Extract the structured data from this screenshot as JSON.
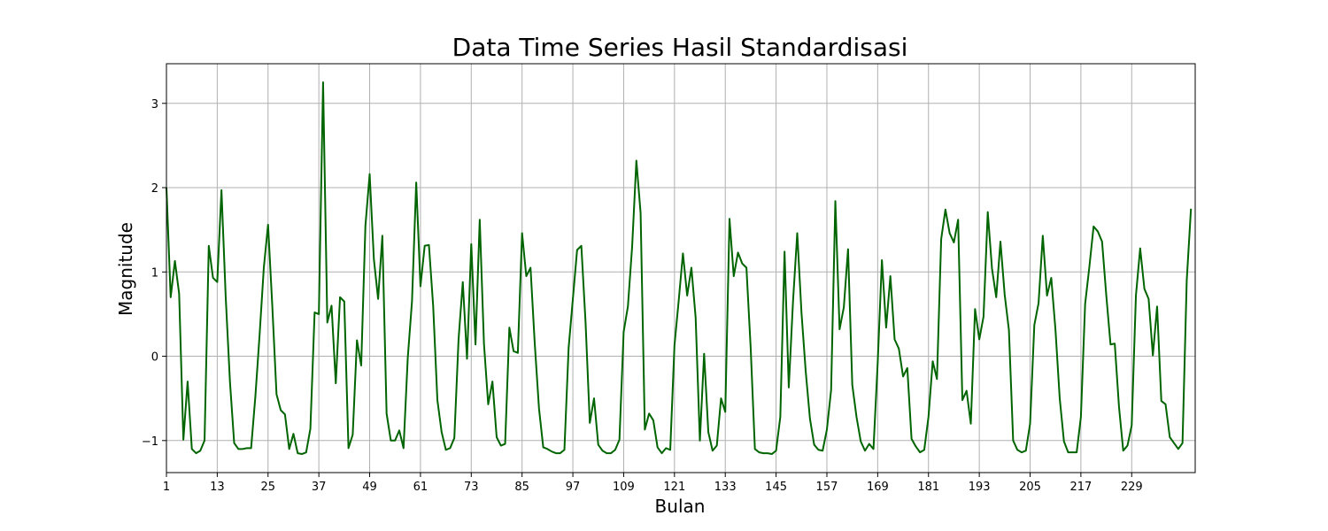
{
  "chart_data": {
    "type": "line",
    "title": "Data Time Series Hasil Standardisasi",
    "xlabel": "Bulan",
    "ylabel": "Magnitude",
    "xlim": [
      1,
      244
    ],
    "ylim": [
      -1.38,
      3.47
    ],
    "x_ticks": [
      1,
      13,
      25,
      37,
      49,
      61,
      73,
      85,
      97,
      109,
      121,
      133,
      145,
      157,
      169,
      181,
      193,
      205,
      217,
      229
    ],
    "y_ticks": [
      -1,
      0,
      1,
      2,
      3
    ],
    "y_tick_labels": [
      "−1",
      "0",
      "1",
      "2",
      "3"
    ],
    "grid": true,
    "colors": {
      "line": "#006400"
    },
    "series": [
      {
        "values": [
          2.0,
          0.7,
          1.13,
          0.74,
          -0.99,
          -0.3,
          -1.1,
          -1.15,
          -1.12,
          -1.0,
          1.31,
          0.93,
          0.88,
          1.97,
          0.7,
          -0.3,
          -1.03,
          -1.1,
          -1.1,
          -1.09,
          -1.09,
          -0.48,
          0.25,
          1.05,
          1.56,
          0.6,
          -0.45,
          -0.64,
          -0.69,
          -1.1,
          -0.92,
          -1.15,
          -1.16,
          -1.14,
          -0.86,
          0.52,
          0.5,
          3.25,
          0.4,
          0.6,
          -0.32,
          0.7,
          0.65,
          -1.09,
          -0.93,
          0.19,
          -0.11,
          1.55,
          2.16,
          1.15,
          0.68,
          1.43,
          -0.68,
          -1.0,
          -1.0,
          -0.88,
          -1.09,
          -0.02,
          0.65,
          2.06,
          0.83,
          1.31,
          1.32,
          0.6,
          -0.52,
          -0.9,
          -1.11,
          -1.09,
          -0.97,
          0.2,
          0.88,
          -0.03,
          1.33,
          0.14,
          1.62,
          0.15,
          -0.57,
          -0.3,
          -0.96,
          -1.06,
          -1.04,
          0.34,
          0.06,
          0.04,
          1.46,
          0.95,
          1.05,
          0.15,
          -0.62,
          -1.08,
          -1.1,
          -1.13,
          -1.15,
          -1.15,
          -1.11,
          0.1,
          0.68,
          1.26,
          1.31,
          0.4,
          -0.79,
          -0.5,
          -1.05,
          -1.12,
          -1.15,
          -1.15,
          -1.11,
          -0.99,
          0.29,
          0.59,
          1.3,
          2.32,
          1.7,
          -0.87,
          -0.68,
          -0.76,
          -1.08,
          -1.15,
          -1.09,
          -1.11,
          0.13,
          0.66,
          1.22,
          0.72,
          1.05,
          0.46,
          -1.0,
          0.03,
          -0.9,
          -1.12,
          -1.06,
          -0.5,
          -0.66,
          1.63,
          0.95,
          1.23,
          1.1,
          1.05,
          0.1,
          -1.1,
          -1.14,
          -1.15,
          -1.15,
          -1.16,
          -1.12,
          -0.72,
          1.24,
          -0.37,
          0.65,
          1.46,
          0.52,
          -0.18,
          -0.74,
          -1.05,
          -1.11,
          -1.12,
          -0.87,
          -0.4,
          1.84,
          0.32,
          0.58,
          1.27,
          -0.34,
          -0.72,
          -1.01,
          -1.12,
          -1.04,
          -1.1,
          -0.08,
          1.14,
          0.34,
          0.95,
          0.2,
          0.09,
          -0.24,
          -0.14,
          -0.98,
          -1.07,
          -1.14,
          -1.11,
          -0.72,
          -0.06,
          -0.27,
          1.39,
          1.74,
          1.46,
          1.35,
          1.62,
          -0.52,
          -0.41,
          -0.8,
          0.56,
          0.2,
          0.47,
          1.71,
          1.04,
          0.7,
          1.36,
          0.73,
          0.31,
          -1.0,
          -1.11,
          -1.14,
          -1.12,
          -0.8,
          0.37,
          0.63,
          1.43,
          0.72,
          0.93,
          0.31,
          -0.5,
          -1.01,
          -1.14,
          -1.14,
          -1.14,
          -0.72,
          0.62,
          1.06,
          1.54,
          1.48,
          1.36,
          0.72,
          0.14,
          0.15,
          -0.6,
          -1.12,
          -1.06,
          -0.82,
          0.72,
          1.28,
          0.8,
          0.68,
          0.01,
          0.59,
          -0.53,
          -0.57,
          -0.96,
          -1.03,
          -1.1,
          -1.03,
          0.9,
          1.75
        ]
      }
    ]
  }
}
